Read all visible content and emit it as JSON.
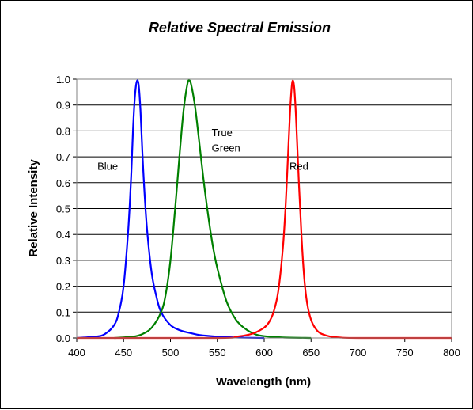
{
  "chart_data": {
    "type": "line",
    "title": "Relative Spectral Emission",
    "xlabel": "Wavelength (nm)",
    "ylabel": "Relative Intensity",
    "xlim": [
      400,
      800
    ],
    "ylim": [
      0,
      1
    ],
    "x_ticks": [
      "400",
      "450",
      "500",
      "550",
      "600",
      "650",
      "700",
      "750",
      "800"
    ],
    "y_ticks": [
      "0.0",
      "0.1",
      "0.2",
      "0.3",
      "0.4",
      "0.5",
      "0.6",
      "0.7",
      "0.8",
      "0.9",
      "1.0"
    ],
    "grid": "horizontal",
    "series": [
      {
        "name": "Blue",
        "color": "#0000ff",
        "x": [
          400,
          420,
          430,
          440,
          445,
          450,
          455,
          458,
          460,
          462,
          464,
          466,
          468,
          470,
          472,
          475,
          480,
          485,
          490,
          500,
          510,
          520,
          530,
          540,
          550,
          560,
          580,
          600
        ],
        "y": [
          0.0,
          0.005,
          0.015,
          0.05,
          0.1,
          0.2,
          0.42,
          0.62,
          0.8,
          0.93,
          0.99,
          0.98,
          0.88,
          0.72,
          0.58,
          0.42,
          0.25,
          0.16,
          0.1,
          0.05,
          0.03,
          0.02,
          0.012,
          0.008,
          0.005,
          0.003,
          0.001,
          0.0
        ]
      },
      {
        "name": "True Green",
        "color": "#008000",
        "x": [
          440,
          460,
          470,
          480,
          490,
          495,
          500,
          505,
          510,
          514,
          518,
          520,
          522,
          526,
          530,
          535,
          540,
          545,
          550,
          560,
          570,
          580,
          590,
          600,
          620,
          650
        ],
        "y": [
          0.0,
          0.005,
          0.015,
          0.04,
          0.1,
          0.17,
          0.3,
          0.5,
          0.72,
          0.88,
          0.98,
          0.995,
          0.98,
          0.9,
          0.78,
          0.62,
          0.48,
          0.36,
          0.27,
          0.14,
          0.07,
          0.035,
          0.015,
          0.007,
          0.002,
          0.0
        ]
      },
      {
        "name": "Red",
        "color": "#ff0000",
        "x": [
          400,
          550,
          570,
          580,
          590,
          600,
          605,
          610,
          615,
          620,
          623,
          626,
          628,
          630,
          632,
          634,
          637,
          640,
          643,
          646,
          650,
          655,
          660,
          670,
          680,
          700,
          800
        ],
        "y": [
          0.0,
          0.0,
          0.005,
          0.01,
          0.02,
          0.04,
          0.06,
          0.1,
          0.18,
          0.35,
          0.52,
          0.75,
          0.9,
          0.99,
          0.97,
          0.85,
          0.6,
          0.38,
          0.22,
          0.13,
          0.07,
          0.035,
          0.018,
          0.006,
          0.002,
          0.0,
          0.0
        ]
      }
    ],
    "annotations": [
      {
        "text": "Blue",
        "x": 422,
        "y": 0.65
      },
      {
        "text": "True",
        "x": 544,
        "y": 0.78
      },
      {
        "text": "Green",
        "x": 544,
        "y": 0.72
      },
      {
        "text": "Red",
        "x": 627,
        "y": 0.65
      }
    ]
  }
}
